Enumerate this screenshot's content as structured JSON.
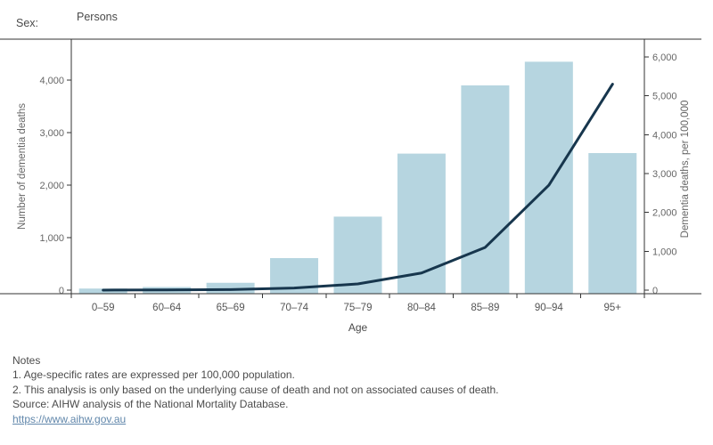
{
  "header": {
    "sex_label": "Sex:",
    "sex_value": "Persons"
  },
  "chart_data": {
    "type": "bar",
    "subtype": "dual-axis bar + line",
    "categories": [
      "0–59",
      "60–64",
      "65–69",
      "70–74",
      "75–79",
      "80–84",
      "85–89",
      "90–94",
      "95+"
    ],
    "xlabel": "Age",
    "grid": false,
    "legend_position": "none",
    "series": [
      {
        "name": "Number of dementia deaths",
        "type": "bar",
        "axis": "left",
        "color": "#b6d5e0",
        "values": [
          30,
          60,
          140,
          610,
          1400,
          2600,
          3900,
          4350,
          2610
        ]
      },
      {
        "name": "Dementia deaths, per 100,000",
        "type": "line",
        "axis": "right",
        "color": "#17364d",
        "values": [
          1,
          5,
          15,
          55,
          160,
          440,
          1100,
          2700,
          5300
        ]
      }
    ],
    "left_axis": {
      "label": "Number of dementia deaths",
      "tick_values": [
        0,
        1000,
        2000,
        3000,
        4000
      ],
      "range": [
        0,
        4780
      ]
    },
    "right_axis": {
      "label": "Dementia deaths, per 100,000",
      "tick_values": [
        0,
        1000,
        2000,
        3000,
        4000,
        5000,
        6000
      ],
      "range": [
        0,
        6460
      ]
    }
  },
  "colors": {
    "bar": "#b6d5e0",
    "line": "#17364d",
    "axis_rule": "#333333",
    "link": "#6187ab"
  },
  "footer": {
    "notes_heading": "Notes",
    "note1": "1. Age-specific rates are expressed per 100,000 population.",
    "note2": "2. This analysis is only based on the underlying cause of death and not on associated causes of death.",
    "source": "Source: AIHW analysis of the National Mortality Database.",
    "link": "https://www.aihw.gov.au"
  }
}
